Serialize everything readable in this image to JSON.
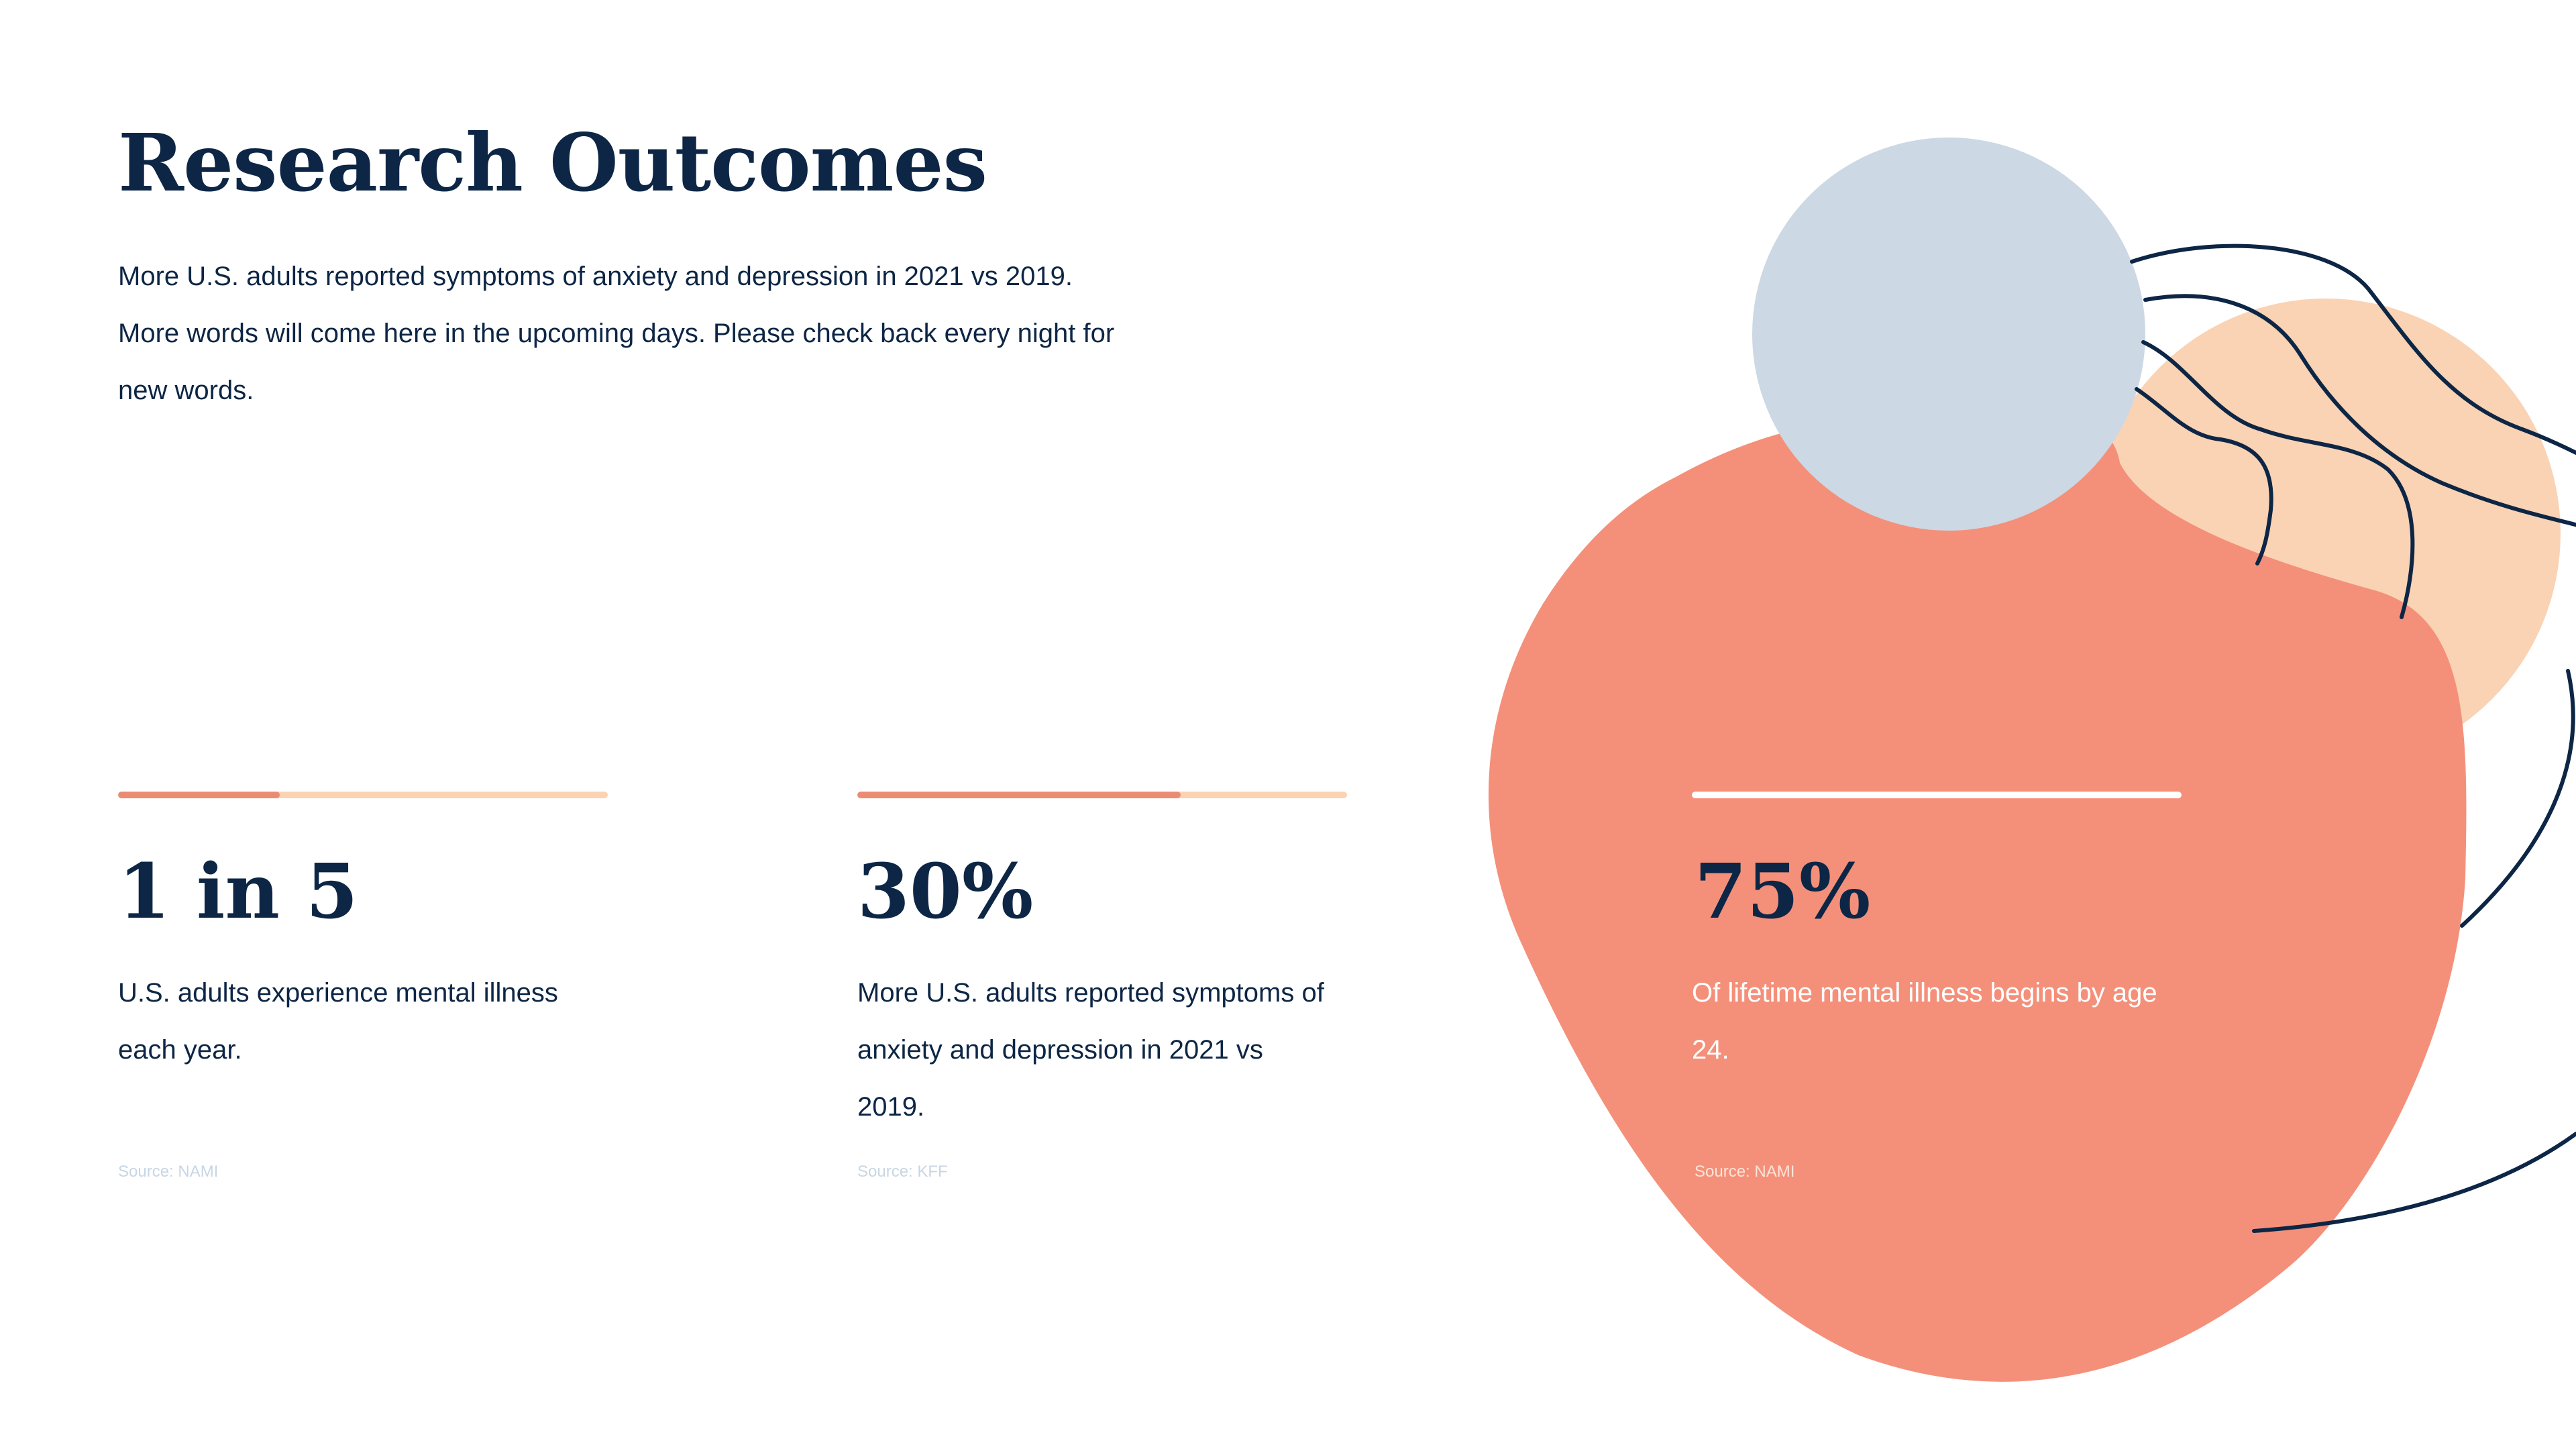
{
  "slide": {
    "title": "Research Outcomes",
    "intro": "More U.S. adults reported symptoms of anxiety and depression in 2021 vs 2019. More words will come here in the upcoming days. Please check back every night for new words."
  },
  "stats": [
    {
      "value": "1 in 5",
      "description": "U.S. adults experience mental illness each year.",
      "source": "Source: NAMI",
      "bar_fill_percent": 33
    },
    {
      "value": "30%",
      "description": "More U.S. adults reported symptoms of anxiety and depression in 2021 vs 2019.",
      "source": "Source: KFF",
      "bar_fill_percent": 66
    },
    {
      "value": "75%",
      "description": "Of lifetime mental illness begins by age 24.",
      "source": "Source: NAMI"
    }
  ],
  "colors": {
    "navy": "#0d2645",
    "coral": "#f4907a",
    "peach": "#fad3b4",
    "light_blue": "#ccd8e4",
    "bar_accent": "#ec8b74",
    "bar_track": "#f9d3b4"
  }
}
